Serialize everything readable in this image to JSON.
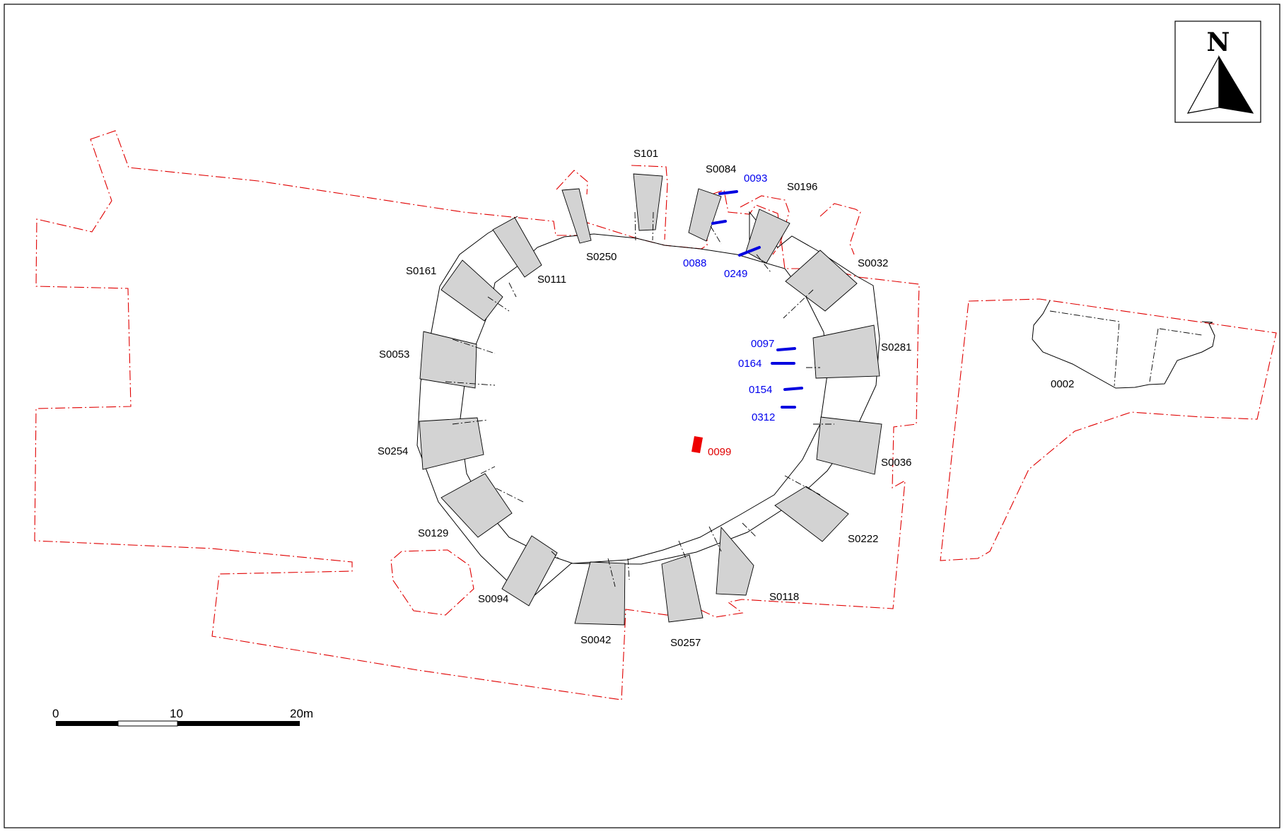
{
  "north_arrow": {
    "letter": "N"
  },
  "scale_bar": {
    "labels": [
      "0",
      "10",
      "20m"
    ]
  },
  "segments": [
    "S101",
    "S0084",
    "S0196",
    "S0250",
    "S0111",
    "S0161",
    "S0032",
    "S0053",
    "S0281",
    "S0254",
    "S0036",
    "S0129",
    "S0222",
    "S0094",
    "S0118",
    "S0042",
    "S0257"
  ],
  "postholes": [
    "0093",
    "0088",
    "0249",
    "0097",
    "0164",
    "0154",
    "0312"
  ],
  "red_feature": "0099",
  "external_feature": "0002",
  "colors": {
    "outline": "#e00000",
    "posthole": "#0000e0",
    "segment_fill": "#d3d3d3"
  }
}
